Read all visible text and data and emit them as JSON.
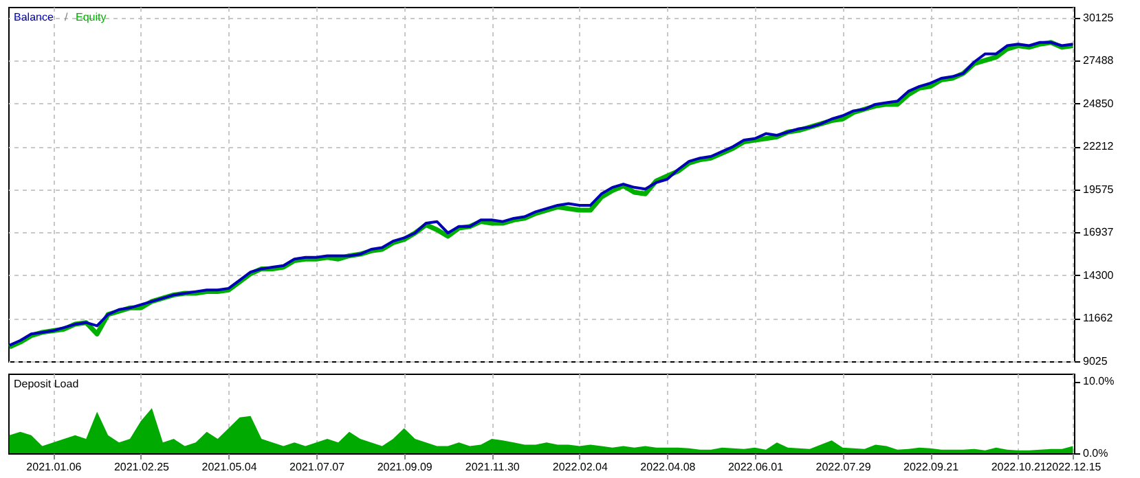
{
  "chart_data": [
    {
      "type": "line",
      "tick_labels": "y",
      "grid": true,
      "legend": "top left",
      "marker": "none",
      "line_style": "solid",
      "annotations": [
        "/"
      ],
      "categories": [
        null,
        null,
        null,
        null,
        "2021.01.06",
        null,
        null,
        null,
        null,
        null,
        null,
        null,
        "2021.02.25",
        null,
        null,
        null,
        null,
        null,
        null,
        null,
        "2021.05.04",
        null,
        null,
        null,
        null,
        null,
        null,
        null,
        "2021.07.07",
        null,
        null,
        null,
        null,
        null,
        null,
        null,
        "2021.09.09",
        null,
        null,
        null,
        null,
        null,
        null,
        null,
        "2021.11.30",
        null,
        null,
        null,
        null,
        null,
        null,
        null,
        "2022.02.04",
        null,
        null,
        null,
        null,
        null,
        null,
        null,
        "2022.04.08",
        null,
        null,
        null,
        null,
        null,
        null,
        null,
        "2022.06.01",
        null,
        null,
        null,
        null,
        null,
        null,
        null,
        "2022.07.29",
        null,
        null,
        null,
        null,
        null,
        null,
        null,
        "2022.09.21",
        null,
        null,
        null,
        null,
        null,
        null,
        null,
        "2022.10.21",
        null,
        null,
        null,
        null,
        "2022.12.15"
      ],
      "ylim": [
        9025,
        30784
      ],
      "yticks": [
        9025,
        11662,
        14300,
        16937,
        19575,
        22212,
        24850,
        27488,
        30125
      ],
      "series": [
        {
          "name": "Equity",
          "color": "#00b000",
          "values": [
            9900,
            10200,
            10600,
            10800,
            10900,
            11000,
            11300,
            11400,
            10700,
            11900,
            12100,
            12300,
            12300,
            12700,
            12900,
            13100,
            13200,
            13200,
            13300,
            13300,
            13400,
            13900,
            14400,
            14700,
            14700,
            14800,
            15200,
            15300,
            15300,
            15400,
            15300,
            15500,
            15600,
            15800,
            15900,
            16300,
            16500,
            16900,
            17400,
            17100,
            16700,
            17200,
            17300,
            17600,
            17500,
            17500,
            17700,
            17800,
            18100,
            18300,
            18500,
            18400,
            18300,
            18300,
            19100,
            19500,
            19800,
            19400,
            19300,
            20100,
            20400,
            20700,
            21200,
            21400,
            21500,
            21800,
            22100,
            22500,
            22600,
            22700,
            22800,
            23100,
            23200,
            23400,
            23600,
            23800,
            23900,
            24300,
            24500,
            24700,
            24800,
            24800,
            25400,
            25800,
            25900,
            26300,
            26400,
            26700,
            27300,
            27500,
            27700,
            28200,
            28400,
            28300,
            28500,
            28600,
            28300,
            28400
          ]
        },
        {
          "name": "Balance",
          "color": "#0000b4",
          "values": [
            10000,
            10300,
            10700,
            10800,
            10900,
            11100,
            11300,
            11400,
            11200,
            11900,
            12200,
            12300,
            12500,
            12700,
            12900,
            13100,
            13200,
            13300,
            13400,
            13400,
            13500,
            14000,
            14500,
            14700,
            14800,
            14900,
            15300,
            15400,
            15400,
            15500,
            15500,
            15500,
            15600,
            15900,
            16000,
            16400,
            16600,
            16900,
            17500,
            17600,
            16900,
            17300,
            17300,
            17700,
            17700,
            17600,
            17800,
            17900,
            18200,
            18400,
            18600,
            18700,
            18600,
            18600,
            19300,
            19700,
            19900,
            19700,
            19600,
            20000,
            20200,
            20800,
            21300,
            21500,
            21600,
            21900,
            22200,
            22600,
            22700,
            23000,
            22900,
            23100,
            23300,
            23400,
            23600,
            23900,
            24100,
            24400,
            24500,
            24800,
            24900,
            25000,
            25600,
            25900,
            26100,
            26400,
            26500,
            26700,
            27400,
            27900,
            27900,
            28400,
            28500,
            28400,
            28600,
            28600,
            28400,
            28500
          ]
        }
      ]
    },
    {
      "type": "area",
      "title": "Deposit Load",
      "grid": "x",
      "legend": false,
      "categories": [
        null,
        null,
        null,
        null,
        "2021.01.06",
        null,
        null,
        null,
        null,
        null,
        null,
        null,
        "2021.02.25",
        null,
        null,
        null,
        null,
        null,
        null,
        null,
        "2021.05.04",
        null,
        null,
        null,
        null,
        null,
        null,
        null,
        "2021.07.07",
        null,
        null,
        null,
        null,
        null,
        null,
        null,
        "2021.09.09",
        null,
        null,
        null,
        null,
        null,
        null,
        null,
        "2021.11.30",
        null,
        null,
        null,
        null,
        null,
        null,
        null,
        "2022.02.04",
        null,
        null,
        null,
        null,
        null,
        null,
        null,
        "2022.04.08",
        null,
        null,
        null,
        null,
        null,
        null,
        null,
        "2022.06.01",
        null,
        null,
        null,
        null,
        null,
        null,
        null,
        "2022.07.29",
        null,
        null,
        null,
        null,
        null,
        null,
        null,
        "2022.09.21",
        null,
        null,
        null,
        null,
        null,
        null,
        null,
        "2022.10.21",
        null,
        null,
        null,
        null,
        "2022.12.15"
      ],
      "ylim": [
        0,
        11.1
      ],
      "yticks": [
        {
          "value": 0,
          "label": "0.0%"
        },
        {
          "value": 10,
          "label": "10.0%"
        }
      ],
      "color": "#00aa00",
      "values": [
        2.5,
        3.0,
        2.5,
        1.0,
        1.5,
        2.0,
        2.5,
        2.0,
        5.8,
        2.5,
        1.5,
        2.0,
        4.5,
        6.3,
        1.5,
        2.0,
        1.0,
        1.5,
        3.0,
        2.0,
        3.5,
        5.0,
        5.2,
        2.0,
        1.5,
        1.0,
        1.5,
        1.0,
        1.5,
        2.0,
        1.5,
        3.0,
        2.0,
        1.5,
        1.0,
        2.0,
        3.5,
        2.0,
        1.5,
        1.0,
        1.0,
        1.5,
        1.0,
        1.2,
        2.0,
        1.8,
        1.5,
        1.2,
        1.2,
        1.5,
        1.2,
        1.2,
        1.0,
        1.2,
        1.0,
        0.8,
        1.0,
        0.8,
        1.0,
        0.8,
        0.8,
        0.8,
        0.7,
        0.5,
        0.5,
        0.8,
        0.7,
        0.6,
        0.8,
        0.5,
        1.5,
        0.8,
        0.7,
        0.6,
        1.2,
        1.8,
        0.8,
        0.7,
        0.6,
        1.2,
        1.0,
        0.5,
        0.6,
        0.8,
        0.7,
        0.5,
        0.5,
        0.5,
        0.6,
        0.4,
        0.8,
        0.5,
        0.4,
        0.4,
        0.5,
        0.6,
        0.6,
        1.0
      ]
    }
  ]
}
